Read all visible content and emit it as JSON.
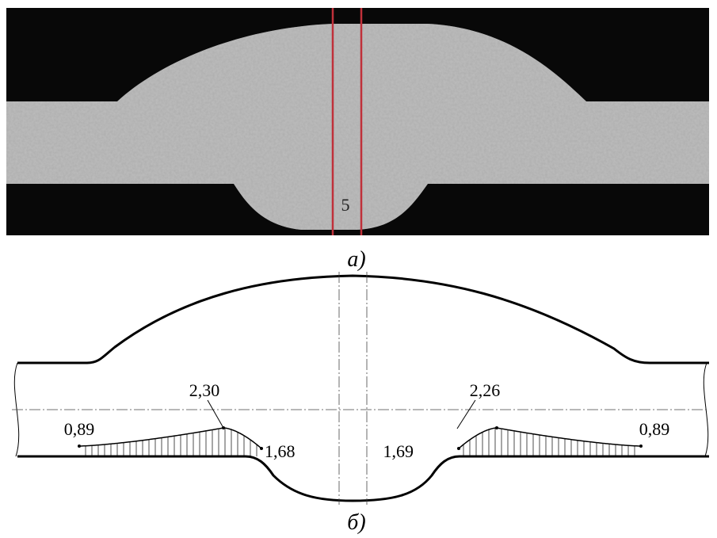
{
  "photo": {
    "section_label": "5",
    "caption": "а)"
  },
  "diagram": {
    "caption": "б)",
    "left": {
      "end_label": "0,89",
      "peak_label": "2,30",
      "edge_label": "1,68"
    },
    "right": {
      "edge_label": "1,69",
      "peak_label": "2,26",
      "end_label": "0,89"
    }
  }
}
